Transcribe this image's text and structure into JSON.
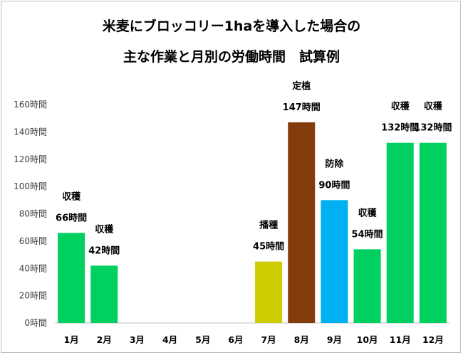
{
  "chart_data": {
    "type": "bar",
    "title_line1": "米麦にブロッコリー1haを導入した場合の",
    "title_line2": "主な作業と月別の労働時間　試算例",
    "categories": [
      "1月",
      "2月",
      "3月",
      "4月",
      "5月",
      "6月",
      "7月",
      "8月",
      "9月",
      "10月",
      "11月",
      "12月"
    ],
    "values": [
      66,
      42,
      0,
      0,
      0,
      0,
      45,
      147,
      90,
      54,
      132,
      132
    ],
    "value_labels": [
      "66時間",
      "42時間",
      "",
      "",
      "",
      "",
      "45時間",
      "147時間",
      "90時間",
      "54時間",
      "132時間",
      "132時間"
    ],
    "work_labels": [
      "収穫",
      "収穫",
      "",
      "",
      "",
      "",
      "播種",
      "定植",
      "防除",
      "収穫",
      "収穫",
      "収穫"
    ],
    "bar_colors": [
      "#00d060",
      "#00d060",
      "",
      "",
      "",
      "",
      "#cccc00",
      "#843c0c",
      "#00b0f0",
      "#00d060",
      "#00d060",
      "#00d060"
    ],
    "ylim": [
      0,
      160
    ],
    "yticks": [
      0,
      20,
      40,
      60,
      80,
      100,
      120,
      140,
      160
    ],
    "ytick_labels": [
      "0時間",
      "20時間",
      "40時間",
      "60時間",
      "80時間",
      "100時間",
      "120時間",
      "140時間",
      "160時間"
    ],
    "grid": false
  }
}
